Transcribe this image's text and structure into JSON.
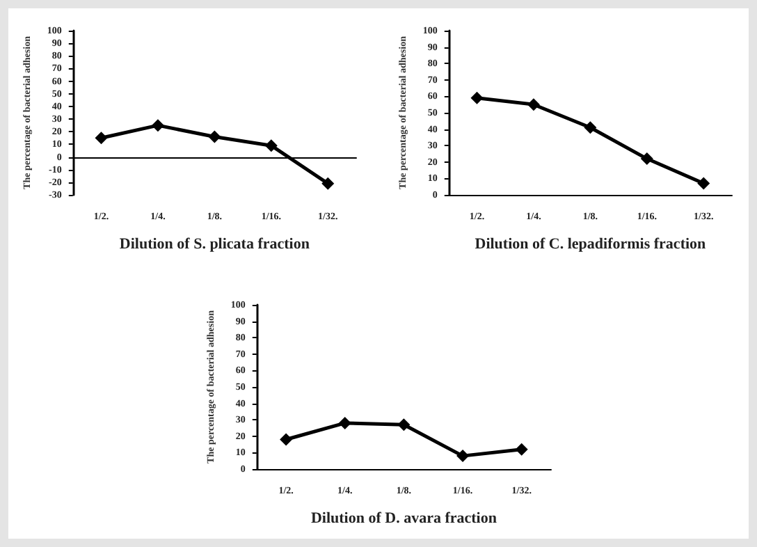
{
  "chart_data": [
    {
      "type": "line",
      "xlabel": "Dilution of S. plicata fraction",
      "ylabel": "The percentage of bacterial adhesion",
      "categories": [
        "1/2.",
        "1/4.",
        "1/8.",
        "1/16.",
        "1/32."
      ],
      "series": [
        {
          "color": "#000000",
          "values": [
            15,
            25,
            16,
            9,
            -21
          ]
        }
      ],
      "ylim": [
        -30,
        100
      ],
      "yticks": [
        -30,
        -20,
        -10,
        0,
        10,
        20,
        30,
        40,
        50,
        60,
        70,
        80,
        90,
        100
      ],
      "marker": "diamond",
      "line_style": "solid"
    },
    {
      "type": "line",
      "xlabel": "Dilution of C. lepadiformis fraction",
      "ylabel": "The percentage of bacterial adhesion",
      "categories": [
        "1/2.",
        "1/4.",
        "1/8.",
        "1/16.",
        "1/32."
      ],
      "series": [
        {
          "color": "#000000",
          "values": [
            59,
            55,
            41,
            22,
            7
          ]
        }
      ],
      "ylim": [
        0,
        100
      ],
      "yticks": [
        0,
        10,
        20,
        30,
        40,
        50,
        60,
        70,
        80,
        90,
        100
      ],
      "marker": "diamond",
      "line_style": "solid"
    },
    {
      "type": "line",
      "xlabel": "Dilution of D. avara fraction",
      "ylabel": "The percentage of bacterial adhesion",
      "categories": [
        "1/2.",
        "1/4.",
        "1/8.",
        "1/16.",
        "1/32."
      ],
      "series": [
        {
          "color": "#000000",
          "values": [
            18,
            28,
            27,
            8,
            12
          ]
        }
      ],
      "ylim": [
        0,
        100
      ],
      "yticks": [
        0,
        10,
        20,
        30,
        40,
        50,
        60,
        70,
        80,
        90,
        100
      ],
      "marker": "diamond",
      "line_style": "solid"
    }
  ]
}
